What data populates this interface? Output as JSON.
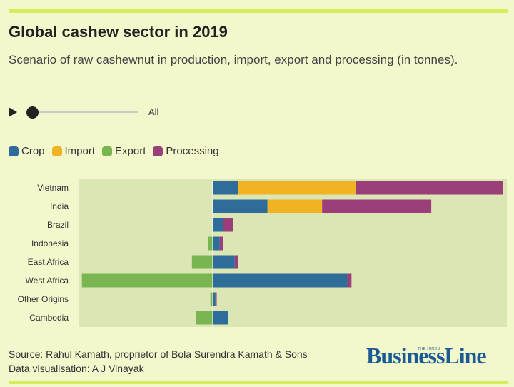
{
  "title": "Global cashew sector in 2019",
  "subtitle": "Scenario of raw cashewnut in production, import, export and processing (in tonnes).",
  "controls": {
    "all_label": "All"
  },
  "colors": {
    "crop": "#2e6d9a",
    "import": "#f0b323",
    "export": "#79b652",
    "processing": "#9a3f79",
    "plot_bg": "#dce6b5"
  },
  "legend": [
    {
      "name": "Crop",
      "color": "#2e6d9a"
    },
    {
      "name": "Import",
      "color": "#f0b323"
    },
    {
      "name": "Export",
      "color": "#79b652"
    },
    {
      "name": "Processing",
      "color": "#9a3f79"
    }
  ],
  "chart_data": {
    "type": "bar",
    "orientation": "horizontal",
    "stacked": true,
    "categories": [
      "Vietnam",
      "India",
      "Brazil",
      "Indonesia",
      "East Africa",
      "West Africa",
      "Other Origins",
      "Cambodia"
    ],
    "series": [
      {
        "name": "Crop",
        "values": [
          300000,
          650000,
          120000,
          80000,
          260000,
          1600000,
          30000,
          180000
        ]
      },
      {
        "name": "Import",
        "values": [
          1400000,
          650000,
          0,
          0,
          0,
          0,
          0,
          0
        ]
      },
      {
        "name": "Export",
        "values": [
          0,
          0,
          0,
          -60000,
          -250000,
          -1560000,
          -30000,
          -200000
        ]
      },
      {
        "name": "Processing",
        "values": [
          1750000,
          1300000,
          120000,
          40000,
          40000,
          50000,
          15000,
          0
        ]
      }
    ],
    "xlim": [
      -1600000,
      3500000
    ]
  },
  "footer": {
    "source": "Source: Rahul Kamath, proprietor of Bola Surendra Kamath & Sons",
    "viz": "Data visualisation: A J Vinayak",
    "logo": "BusinessLine",
    "logo_small": "THE HINDU"
  }
}
